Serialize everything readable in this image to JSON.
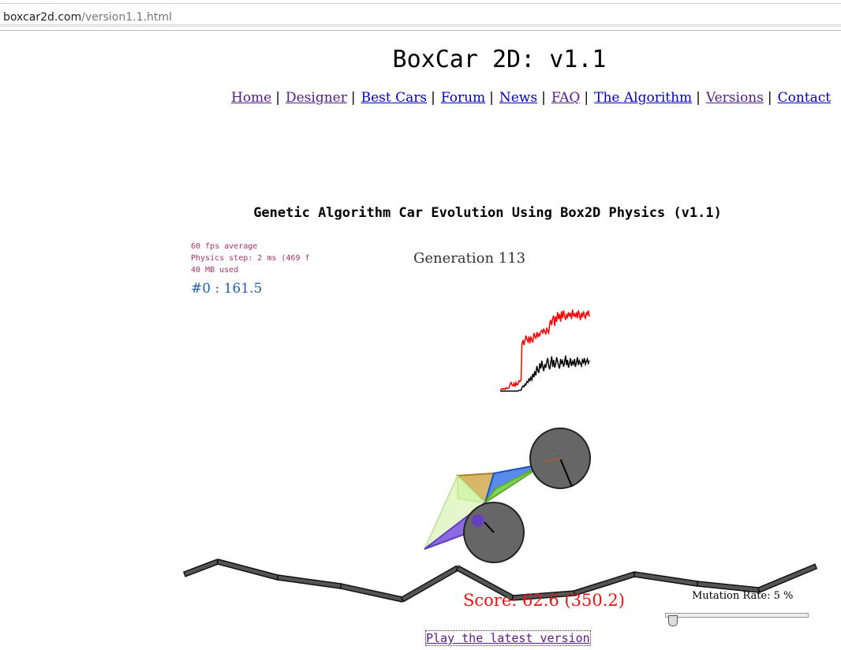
{
  "browser": {
    "url_domain": "boxcar2d.com",
    "url_path": "/version1.1.html"
  },
  "page": {
    "site_title": "BoxCar 2D: v1.1",
    "nav": [
      {
        "label": "Home",
        "visited": true
      },
      {
        "label": "Designer",
        "visited": true
      },
      {
        "label": "Best Cars",
        "visited": false
      },
      {
        "label": "Forum",
        "visited": false
      },
      {
        "label": "News",
        "visited": false
      },
      {
        "label": "FAQ",
        "visited": true
      },
      {
        "label": "The Algorithm",
        "visited": false
      },
      {
        "label": "Versions",
        "visited": true
      },
      {
        "label": "Contact",
        "visited": false
      }
    ],
    "ga_title": "Genetic Algorithm Car Evolution Using Box2D Physics (v1.1)"
  },
  "sim": {
    "stats": {
      "fps": "60 fps average",
      "physics": "Physics step: 2 ms (469 f",
      "memory": "40 MB used"
    },
    "leader": "#0 : 161.5",
    "generation": "Generation 113",
    "score": "Score: 62.6 (350.2)",
    "mutation_label": "Mutation Rate: 5 %",
    "mutation_rate_percent": 5,
    "latest_link": "Play the latest version",
    "colors": {
      "best_line": "#ff0000",
      "average_line": "#000000",
      "stats_text": "#b03060",
      "leader_text": "#1f5fae",
      "score_text": "#ee1111",
      "wheel_fill": "#666666",
      "track_fill": "#555555"
    },
    "fitness_graph": {
      "best": [
        4,
        4,
        5,
        4,
        5,
        4,
        6,
        5,
        5,
        6,
        10,
        12,
        9,
        8,
        11,
        7,
        12,
        9,
        10,
        14,
        13,
        15,
        56,
        61,
        55,
        60,
        66,
        62,
        59,
        65,
        57,
        64,
        61,
        58,
        69,
        65,
        63,
        70,
        64,
        68,
        66,
        71,
        72,
        69,
        74,
        70,
        68,
        75,
        71,
        69,
        80,
        84,
        78,
        86,
        89,
        77,
        88,
        82,
        93,
        85,
        91,
        82,
        94,
        86,
        95,
        89,
        84,
        90,
        87,
        93,
        88,
        92,
        85,
        96,
        89,
        91,
        87,
        93,
        86,
        95,
        90,
        84,
        92,
        87,
        94,
        89,
        86,
        92,
        90,
        95,
        88
      ],
      "average": [
        2,
        2,
        2,
        2,
        2,
        2,
        2,
        2,
        2,
        2,
        2,
        2,
        2,
        2,
        2,
        2,
        2,
        2,
        2,
        3,
        3,
        3,
        6,
        8,
        7,
        10,
        9,
        13,
        12,
        16,
        14,
        18,
        15,
        22,
        18,
        25,
        20,
        31,
        26,
        23,
        34,
        28,
        37,
        30,
        25,
        33,
        29,
        36,
        40,
        31,
        27,
        35,
        42,
        30,
        38,
        29,
        33,
        41,
        36,
        31,
        28,
        39,
        34,
        37,
        30,
        35,
        43,
        32,
        38,
        29,
        34,
        40,
        31,
        36,
        33,
        39,
        30,
        35,
        41,
        32,
        37,
        34,
        31,
        38,
        35,
        40,
        33,
        36,
        39,
        34,
        37
      ]
    }
  }
}
